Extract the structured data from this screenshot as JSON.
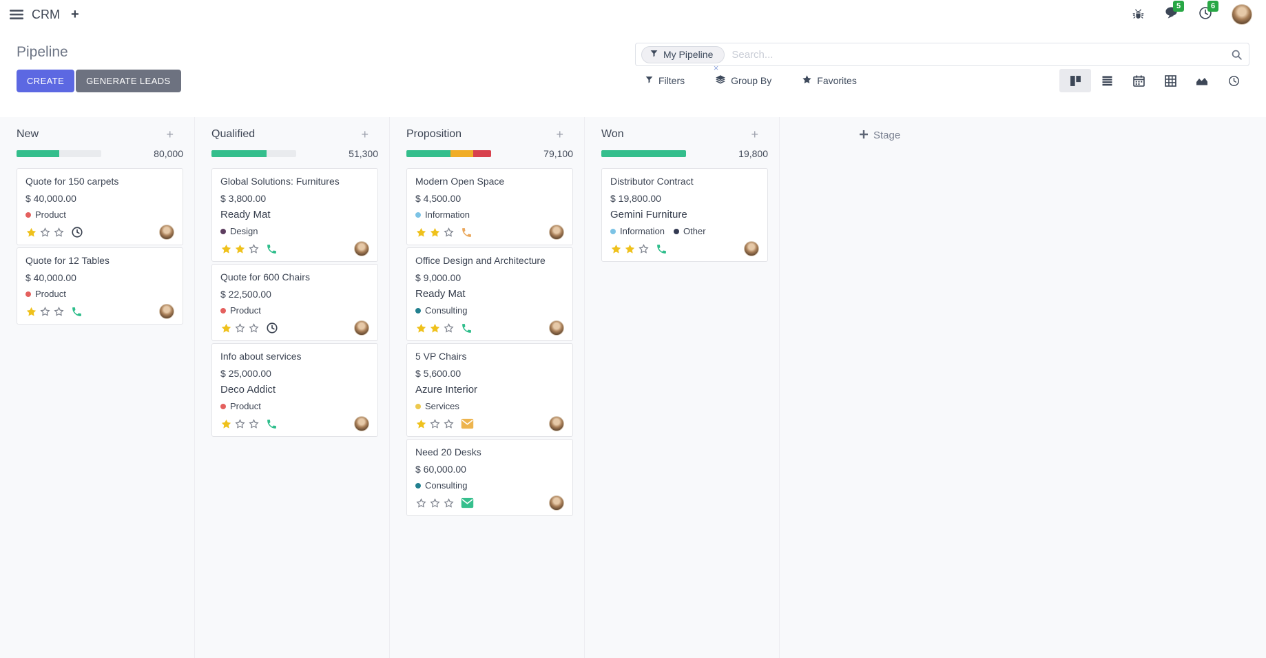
{
  "navbar": {
    "app_name": "CRM",
    "messages_badge": "5",
    "activities_badge": "6"
  },
  "control_panel": {
    "title": "Pipeline",
    "create_label": "CREATE",
    "generate_leads_label": "GENERATE LEADS",
    "search_facet": "My Pipeline",
    "search_placeholder": "Search...",
    "filters_label": "Filters",
    "group_by_label": "Group By",
    "favorites_label": "Favorites"
  },
  "colors": {
    "accent": "#5c68e2",
    "progress_green": "#34be8c",
    "progress_orange": "#f0ad27",
    "progress_red": "#d8414d",
    "badge_green": "#28a745",
    "star_gold": "#efc11c"
  },
  "kanban": {
    "add_stage_label": "Stage",
    "columns": [
      {
        "name": "New",
        "total": "80,000",
        "progress": [
          {
            "color": "#34be8c",
            "pct": 50
          }
        ],
        "cards": [
          {
            "title": "Quote for 150 carpets",
            "amount": "$ 40,000.00",
            "tags": [
              {
                "label": "Product",
                "color": "#e4605e"
              }
            ],
            "stars": 1,
            "action": {
              "type": "clock",
              "color": "#39414f"
            }
          },
          {
            "title": "Quote for 12 Tables",
            "amount": "$ 40,000.00",
            "tags": [
              {
                "label": "Product",
                "color": "#e4605e"
              }
            ],
            "stars": 1,
            "action": {
              "type": "phone",
              "color": "#2ebd8b"
            }
          }
        ]
      },
      {
        "name": "Qualified",
        "total": "51,300",
        "progress": [
          {
            "color": "#34be8c",
            "pct": 65
          }
        ],
        "cards": [
          {
            "title": "Global Solutions: Furnitures",
            "amount": "$ 3,800.00",
            "partner": "Ready Mat",
            "tags": [
              {
                "label": "Design",
                "color": "#5d3d5f"
              }
            ],
            "stars": 2,
            "action": {
              "type": "phone",
              "color": "#2ebd8b"
            }
          },
          {
            "title": "Quote for 600 Chairs",
            "amount": "$ 22,500.00",
            "tags": [
              {
                "label": "Product",
                "color": "#e4605e"
              }
            ],
            "stars": 1,
            "action": {
              "type": "clock",
              "color": "#39414f"
            }
          },
          {
            "title": "Info about services",
            "amount": "$ 25,000.00",
            "partner": "Deco Addict",
            "tags": [
              {
                "label": "Product",
                "color": "#e4605e"
              }
            ],
            "stars": 1,
            "action": {
              "type": "phone",
              "color": "#2ebd8b"
            }
          }
        ]
      },
      {
        "name": "Proposition",
        "total": "79,100",
        "progress": [
          {
            "color": "#34be8c",
            "pct": 52
          },
          {
            "color": "#f0ad27",
            "pct": 27
          },
          {
            "color": "#d8414d",
            "pct": 21
          }
        ],
        "cards": [
          {
            "title": "Modern Open Space",
            "amount": "$ 4,500.00",
            "tags": [
              {
                "label": "Information",
                "color": "#7cc3e5"
              }
            ],
            "stars": 2,
            "action": {
              "type": "phone",
              "color": "#eaa75b"
            }
          },
          {
            "title": "Office Design and Architecture",
            "amount": "$ 9,000.00",
            "partner": "Ready Mat",
            "tags": [
              {
                "label": "Consulting",
                "color": "#22808f"
              }
            ],
            "stars": 2,
            "action": {
              "type": "phone",
              "color": "#2ebd8b"
            }
          },
          {
            "title": "5 VP Chairs",
            "amount": "$ 5,600.00",
            "partner": "Azure Interior",
            "tags": [
              {
                "label": "Services",
                "color": "#edc94e"
              }
            ],
            "stars": 1,
            "action": {
              "type": "envelope",
              "color": "#edb44e"
            }
          },
          {
            "title": "Need 20 Desks",
            "amount": "$ 60,000.00",
            "tags": [
              {
                "label": "Consulting",
                "color": "#22808f"
              }
            ],
            "stars": 0,
            "action": {
              "type": "envelope",
              "color": "#36bf8d"
            }
          }
        ]
      },
      {
        "name": "Won",
        "total": "19,800",
        "progress": [
          {
            "color": "#34be8c",
            "pct": 100
          }
        ],
        "cards": [
          {
            "title": "Distributor Contract",
            "amount": "$ 19,800.00",
            "partner": "Gemini Furniture",
            "tags": [
              {
                "label": "Information",
                "color": "#7cc3e5"
              },
              {
                "label": "Other",
                "color": "#333a52"
              }
            ],
            "stars": 2,
            "action": {
              "type": "phone",
              "color": "#2ebd8b"
            }
          }
        ]
      }
    ]
  }
}
